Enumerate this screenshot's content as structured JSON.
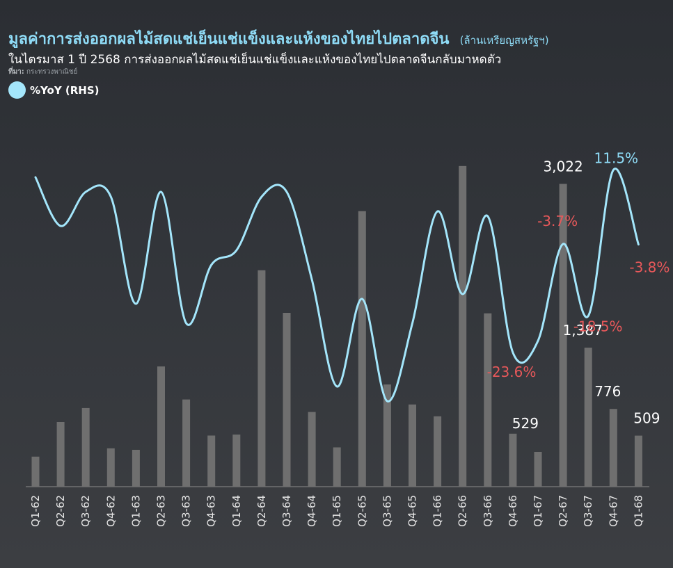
{
  "header": {
    "title": "มูลค่าการส่งออกผลไม้สดแช่เย็นแช่แข็งและแห้งของไทยไปตลาดจีน",
    "unit": "(ล้านเหรียญสหรัฐฯ)",
    "subtitle": "ในไตรมาส 1 ปี 2568 การส่งออกผลไม้สดแช่เย็นแช่แข็งและแห้งของไทยไปตลาดจีนกลับมาหดตัว",
    "source_label": "ที่มา:",
    "source": "กระทรวงพาณิชย์"
  },
  "legend": {
    "label": "%YoY (RHS)"
  },
  "colors": {
    "bar": "#6f6f6f",
    "line": "#a4e6fb",
    "positive": "#8fdcf7",
    "negative": "#e8585a"
  },
  "chart_data": {
    "type": "bar",
    "categories": [
      "Q1-62",
      "Q2-62",
      "Q3-62",
      "Q4-62",
      "Q1-63",
      "Q2-63",
      "Q3-63",
      "Q4-63",
      "Q1-64",
      "Q2-64",
      "Q3-64",
      "Q4-64",
      "Q1-65",
      "Q2-65",
      "Q3-65",
      "Q4-65",
      "Q1-66",
      "Q2-66",
      "Q3-66",
      "Q4-66",
      "Q1-67",
      "Q2-67",
      "Q3-67",
      "Q4-67",
      "Q1-68"
    ],
    "series": [
      {
        "name": "",
        "axis": "left",
        "values": [
          300,
          645,
          785,
          382,
          368,
          1200,
          870,
          510,
          520,
          2160,
          1735,
          745,
          392,
          2750,
          1020,
          820,
          702,
          3200,
          1730,
          529,
          347,
          3022,
          1387,
          776,
          509
        ]
      },
      {
        "name": "%YoY (RHS)",
        "axis": "right",
        "values": [
          10,
          0,
          7,
          6,
          -16,
          7,
          -20,
          -8,
          -5,
          6,
          7,
          -11,
          -33,
          -15,
          -36,
          -20,
          3,
          -14,
          2,
          -26,
          -23.6,
          -3.7,
          -18.5,
          11.5,
          -3.8
        ]
      }
    ],
    "bar_data_labels": [
      {
        "category": "Q4-66",
        "text": "529"
      },
      {
        "category": "Q2-67",
        "text": "3,022"
      },
      {
        "category": "Q3-67",
        "text": "1,387"
      },
      {
        "category": "Q4-67",
        "text": "776"
      },
      {
        "category": "Q1-68",
        "text": "509"
      }
    ],
    "yoy_data_labels": [
      {
        "category": "Q1-67",
        "text": "-23.6%",
        "sign": "negative"
      },
      {
        "category": "Q2-67",
        "text": "-3.7%",
        "sign": "negative"
      },
      {
        "category": "Q3-67",
        "text": "-18.5%",
        "sign": "negative"
      },
      {
        "category": "Q4-67",
        "text": "11.5%",
        "sign": "positive"
      },
      {
        "category": "Q1-68",
        "text": "-3.8%",
        "sign": "negative"
      }
    ],
    "ylim_left": [
      0,
      3400
    ],
    "ylim_right": [
      -60,
      25
    ],
    "grid": false,
    "legend_position": "top-left"
  }
}
